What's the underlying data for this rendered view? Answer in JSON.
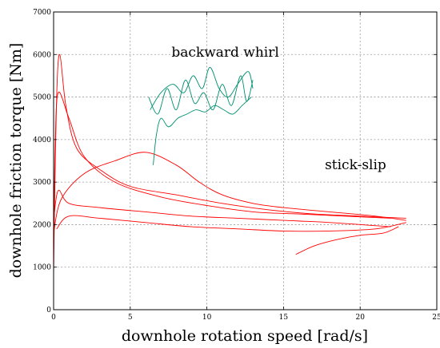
{
  "chart_data": {
    "type": "line",
    "title": "",
    "xlabel": "downhole rotation speed [rad/s]",
    "ylabel": "downhole friction torque [Nm]",
    "xlim": [
      0,
      25
    ],
    "ylim": [
      0,
      7000
    ],
    "xticks": [
      "0",
      "5",
      "10",
      "15",
      "20",
      "25"
    ],
    "yticks": [
      "0",
      "1000",
      "2000",
      "3000",
      "4000",
      "5000",
      "6000",
      "7000"
    ],
    "grid": true,
    "series": [
      {
        "color": "#ff0000",
        "points": [
          [
            0.0,
            800
          ],
          [
            0.05,
            2200
          ],
          [
            0.2,
            5000
          ],
          [
            0.4,
            6000
          ],
          [
            0.8,
            4800
          ],
          [
            1.5,
            3800
          ],
          [
            3,
            3300
          ],
          [
            5,
            2900
          ],
          [
            8,
            2700
          ],
          [
            11,
            2500
          ],
          [
            14,
            2350
          ],
          [
            17,
            2250
          ],
          [
            20,
            2200
          ],
          [
            23,
            2150
          ]
        ]
      },
      {
        "color": "#ff0000",
        "points": [
          [
            0.0,
            1400
          ],
          [
            0.1,
            3800
          ],
          [
            0.3,
            5100
          ],
          [
            1,
            4500
          ],
          [
            2,
            3600
          ],
          [
            4,
            3000
          ],
          [
            7,
            2650
          ],
          [
            10,
            2450
          ],
          [
            13,
            2300
          ],
          [
            16,
            2250
          ],
          [
            19,
            2200
          ],
          [
            22,
            2150
          ]
        ]
      },
      {
        "color": "#ff0000",
        "points": [
          [
            0.0,
            1800
          ],
          [
            0.5,
            2600
          ],
          [
            2,
            3200
          ],
          [
            4,
            3500
          ],
          [
            6,
            3700
          ],
          [
            8,
            3400
          ],
          [
            9.5,
            3000
          ],
          [
            11,
            2700
          ],
          [
            13,
            2500
          ],
          [
            15,
            2400
          ],
          [
            18,
            2300
          ],
          [
            21,
            2200
          ],
          [
            23,
            2100
          ]
        ]
      },
      {
        "color": "#ff0000",
        "points": [
          [
            0.0,
            2100
          ],
          [
            0.3,
            2800
          ],
          [
            1,
            2500
          ],
          [
            3,
            2400
          ],
          [
            6,
            2300
          ],
          [
            9,
            2200
          ],
          [
            12,
            2150
          ],
          [
            15,
            2100
          ],
          [
            18,
            2050
          ],
          [
            22,
            1950
          ]
        ]
      },
      {
        "color": "#ff0000",
        "points": [
          [
            0.2,
            1900
          ],
          [
            1,
            2200
          ],
          [
            3,
            2150
          ],
          [
            6,
            2050
          ],
          [
            9,
            1950
          ],
          [
            12,
            1900
          ],
          [
            15,
            1850
          ],
          [
            18,
            1850
          ],
          [
            21,
            1900
          ],
          [
            23,
            2050
          ]
        ]
      },
      {
        "color": "#ff0000",
        "points": [
          [
            15.8,
            1300
          ],
          [
            17,
            1500
          ],
          [
            18.5,
            1650
          ],
          [
            20,
            1750
          ],
          [
            21.5,
            1800
          ],
          [
            22.5,
            1950
          ]
        ]
      },
      {
        "color": "#009070",
        "points": [
          [
            6.2,
            5000
          ],
          [
            6.8,
            4600
          ],
          [
            7.4,
            5200
          ],
          [
            8.0,
            4700
          ],
          [
            8.6,
            5400
          ],
          [
            9.2,
            4850
          ],
          [
            9.8,
            5100
          ],
          [
            10.4,
            4700
          ],
          [
            11.0,
            5300
          ],
          [
            11.6,
            4800
          ],
          [
            12.2,
            5500
          ],
          [
            12.6,
            4900
          ],
          [
            13.0,
            5400
          ]
        ]
      },
      {
        "color": "#009070",
        "points": [
          [
            6.5,
            3400
          ],
          [
            6.7,
            4100
          ],
          [
            7.0,
            4500
          ],
          [
            7.5,
            4300
          ],
          [
            8.1,
            4500
          ],
          [
            8.7,
            4600
          ],
          [
            9.3,
            4700
          ],
          [
            9.9,
            4650
          ],
          [
            10.5,
            4800
          ],
          [
            11.1,
            4700
          ],
          [
            11.7,
            4600
          ],
          [
            12.3,
            4800
          ],
          [
            12.9,
            5000
          ]
        ]
      },
      {
        "color": "#009070",
        "points": [
          [
            6.3,
            4700
          ],
          [
            7.0,
            5100
          ],
          [
            7.8,
            5300
          ],
          [
            8.5,
            5100
          ],
          [
            9.1,
            5500
          ],
          [
            9.7,
            5200
          ],
          [
            10.2,
            5700
          ],
          [
            10.8,
            5200
          ],
          [
            11.4,
            5000
          ],
          [
            12.0,
            5300
          ],
          [
            12.7,
            5600
          ],
          [
            13.0,
            5200
          ]
        ]
      }
    ],
    "annotations": [
      {
        "text": "backward whirl",
        "x": 11.2,
        "y": 5950
      },
      {
        "text": "stick-slip",
        "x": 19.7,
        "y": 3300
      }
    ]
  }
}
